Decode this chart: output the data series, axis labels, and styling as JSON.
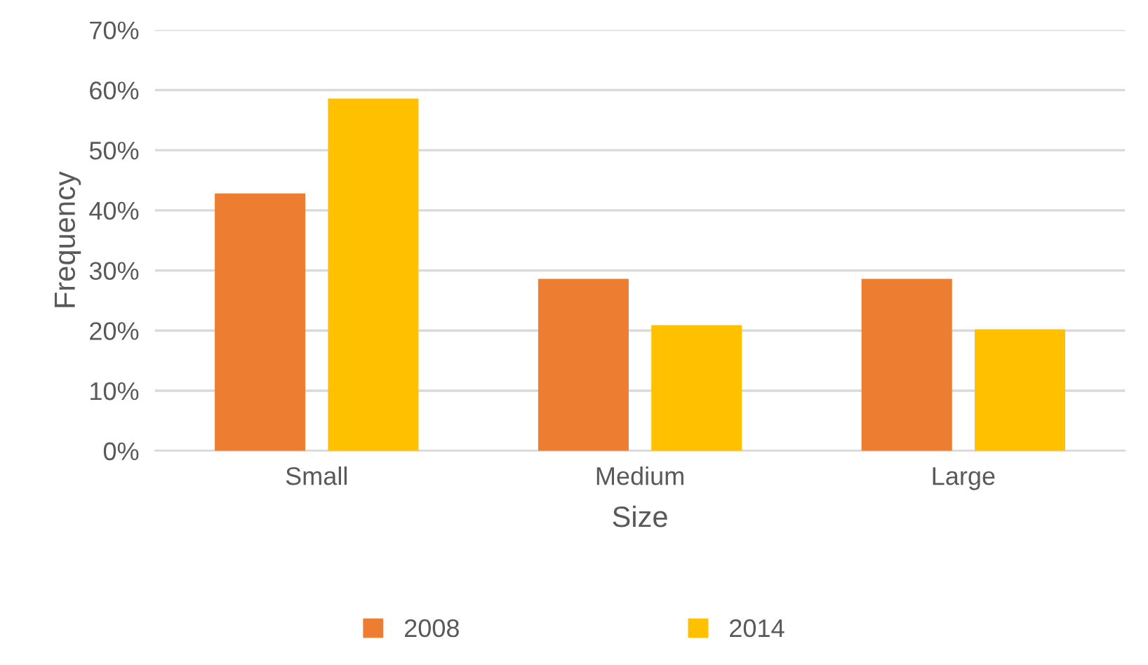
{
  "chart_data": {
    "type": "bar",
    "xlabel": "Size",
    "ylabel": "Frequency",
    "categories": [
      "Small",
      "Medium",
      "Large"
    ],
    "series": [
      {
        "name": "2008",
        "color": "#ed7d31",
        "values": [
          42.8,
          28.6,
          28.6
        ]
      },
      {
        "name": "2014",
        "color": "#ffc000",
        "values": [
          58.6,
          20.9,
          20.2
        ]
      }
    ],
    "ylim": [
      0,
      70
    ],
    "yticks": [
      {
        "value": 0,
        "label": "0%"
      },
      {
        "value": 10,
        "label": "10%"
      },
      {
        "value": 20,
        "label": "20%"
      },
      {
        "value": 30,
        "label": "30%"
      },
      {
        "value": 40,
        "label": "40%"
      },
      {
        "value": 50,
        "label": "50%"
      },
      {
        "value": 60,
        "label": "60%"
      },
      {
        "value": 70,
        "label": "70%"
      }
    ],
    "grid": "y",
    "legend": "bottom"
  }
}
